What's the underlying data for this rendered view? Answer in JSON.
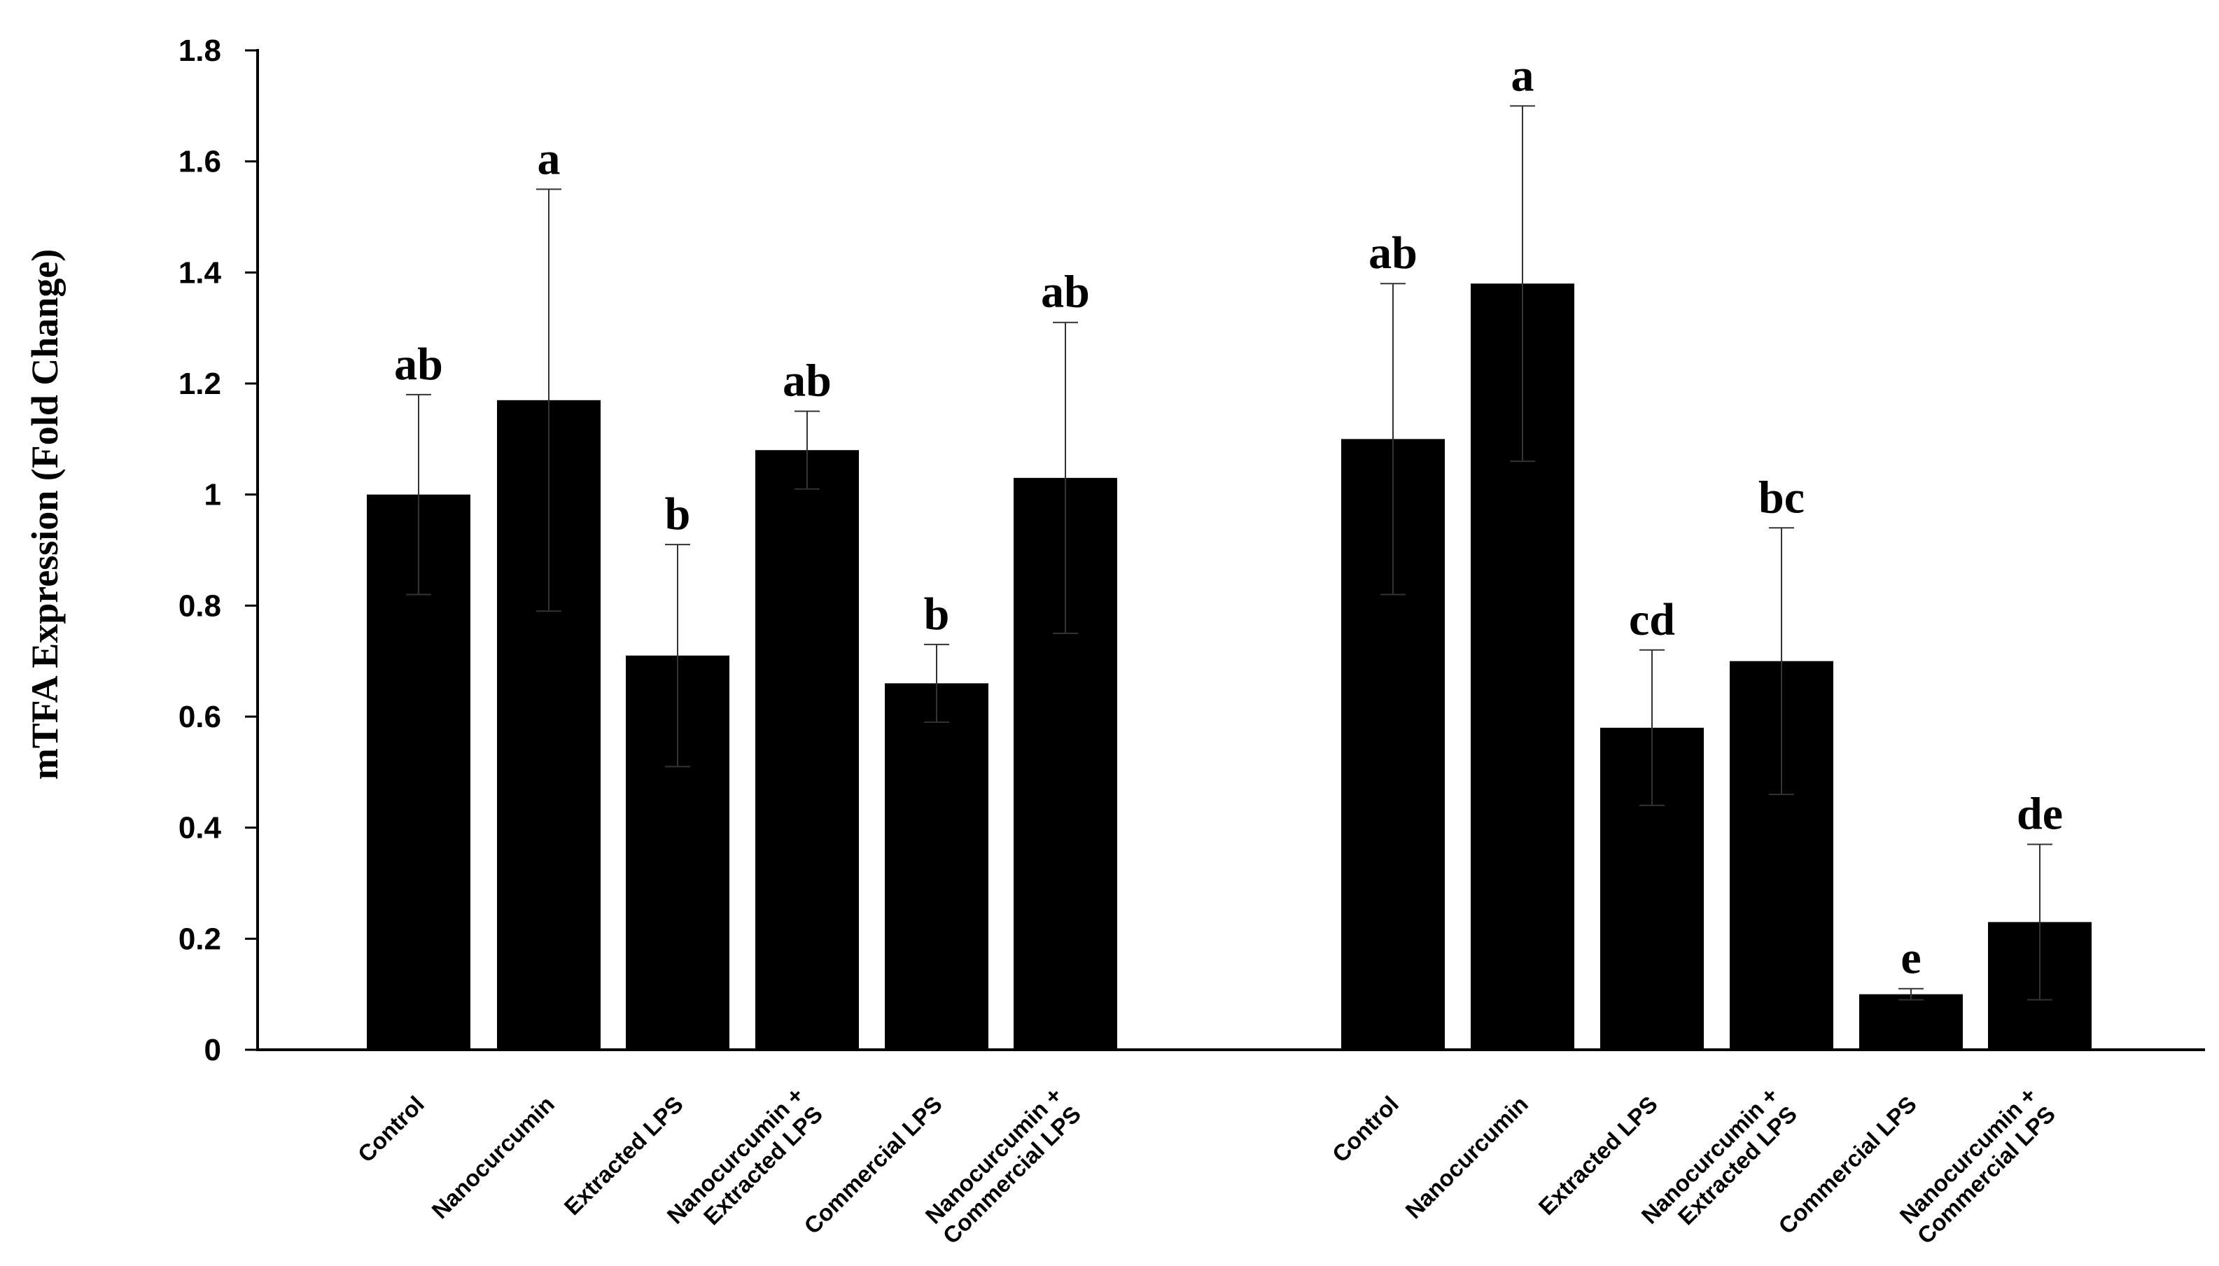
{
  "chart_data": {
    "type": "bar",
    "title": "",
    "xlabel": "",
    "ylabel": "mTFA Expression  (Fold Change)",
    "ylim": [
      0,
      1.8
    ],
    "yticks": [
      "0",
      "0.2",
      "0.4",
      "0.6",
      "0.8",
      "1",
      "1.2",
      "1.4",
      "1.6",
      "1.8"
    ],
    "ytick_values": [
      0,
      0.2,
      0.4,
      0.6,
      0.8,
      1.0,
      1.2,
      1.4,
      1.6,
      1.8
    ],
    "grid": false,
    "bar_color": "#000000",
    "groups": [
      {
        "categories": [
          [
            "Control"
          ],
          [
            "Nanocurcumin"
          ],
          [
            "Extracted LPS"
          ],
          [
            "Nanocurcumin +",
            "Extracted LPS"
          ],
          [
            "Commercial LPS"
          ],
          [
            "Nanocurcumin +",
            "Commercial LPS"
          ]
        ],
        "values": [
          1.0,
          1.17,
          0.71,
          1.08,
          0.66,
          1.03
        ],
        "error_low": [
          0.82,
          0.79,
          0.51,
          1.01,
          0.59,
          0.75
        ],
        "error_high": [
          1.18,
          1.55,
          0.91,
          1.15,
          0.73,
          1.31
        ],
        "significance": [
          "ab",
          "a",
          "b",
          "ab",
          "b",
          "ab"
        ]
      },
      {
        "categories": [
          [
            "Control"
          ],
          [
            "Nanocurcumin"
          ],
          [
            "Extracted LPS"
          ],
          [
            "Nanocurcumin +",
            "Extracted LPS"
          ],
          [
            "Commercial LPS"
          ],
          [
            "Nanocurcumin +",
            "Commercial LPS"
          ]
        ],
        "values": [
          1.1,
          1.38,
          0.58,
          0.7,
          0.1,
          0.23
        ],
        "error_low": [
          0.82,
          1.06,
          0.44,
          0.46,
          0.09,
          0.09
        ],
        "error_high": [
          1.38,
          1.7,
          0.72,
          0.94,
          0.11,
          0.37
        ],
        "significance": [
          "ab",
          "a",
          "cd",
          "bc",
          "e",
          "de"
        ]
      }
    ]
  }
}
